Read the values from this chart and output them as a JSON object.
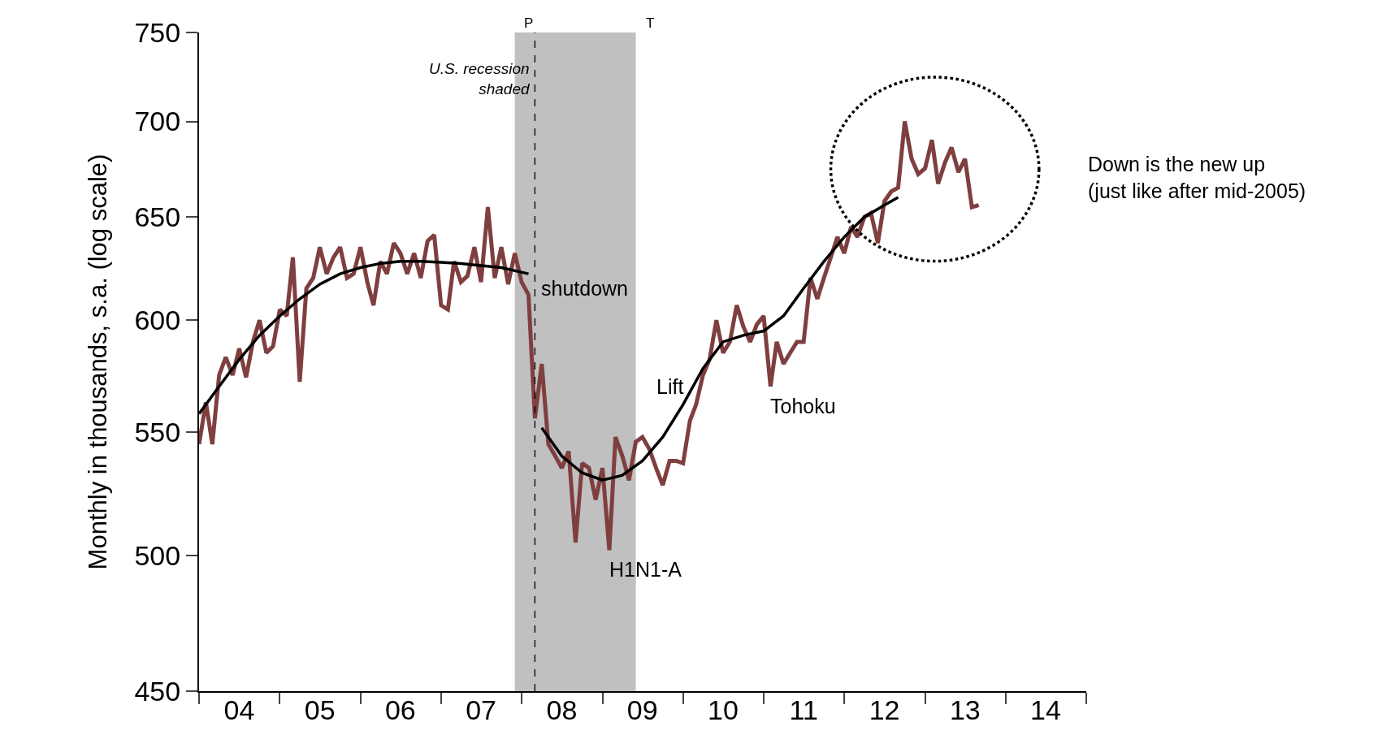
{
  "chart_data": {
    "type": "line",
    "ylabel": "Monthly in thousands, s.a. (log scale)",
    "log": "y",
    "xlim": [
      "2004-01-01",
      "2015-01-01"
    ],
    "xticks": [
      {
        "value": "2004-01-01",
        "label": null
      },
      {
        "value": "2004-07-01",
        "label": "04"
      },
      {
        "value": "2005-01-01",
        "label": null
      },
      {
        "value": "2005-07-01",
        "label": "05"
      },
      {
        "value": "2006-01-01",
        "label": null
      },
      {
        "value": "2006-07-01",
        "label": "06"
      },
      {
        "value": "2007-01-01",
        "label": null
      },
      {
        "value": "2007-07-01",
        "label": "07"
      },
      {
        "value": "2008-01-01",
        "label": null
      },
      {
        "value": "2008-07-01",
        "label": "08"
      },
      {
        "value": "2009-01-01",
        "label": null
      },
      {
        "value": "2009-07-01",
        "label": "09"
      },
      {
        "value": "2010-01-01",
        "label": null
      },
      {
        "value": "2010-07-01",
        "label": "10"
      },
      {
        "value": "2011-01-01",
        "label": null
      },
      {
        "value": "2011-07-01",
        "label": "11"
      },
      {
        "value": "2012-01-01",
        "label": null
      },
      {
        "value": "2012-07-01",
        "label": "12"
      },
      {
        "value": "2013-01-01",
        "label": null
      },
      {
        "value": "2013-07-01",
        "label": "13"
      },
      {
        "value": "2014-01-01",
        "label": null
      },
      {
        "value": "2014-07-01",
        "label": "14"
      },
      {
        "value": "2015-01-01",
        "label": null
      }
    ],
    "ylim": [
      450,
      750
    ],
    "yticks": [
      450,
      500,
      550,
      600,
      650,
      700,
      750
    ],
    "grid": false,
    "marker": "none",
    "line_style": "solid",
    "series": [
      {
        "color": "#7f3f3f",
        "x": [
          "2004-01",
          "2004-02",
          "2004-03",
          "2004-04",
          "2004-05",
          "2004-06",
          "2004-07",
          "2004-08",
          "2004-09",
          "2004-10",
          "2004-11",
          "2004-12",
          "2005-01",
          "2005-02",
          "2005-03",
          "2005-04",
          "2005-05",
          "2005-06",
          "2005-07",
          "2005-08",
          "2005-09",
          "2005-10",
          "2005-11",
          "2005-12",
          "2006-01",
          "2006-02",
          "2006-03",
          "2006-04",
          "2006-05",
          "2006-06",
          "2006-07",
          "2006-08",
          "2006-09",
          "2006-10",
          "2006-11",
          "2006-12",
          "2007-01",
          "2007-02",
          "2007-03",
          "2007-04",
          "2007-05",
          "2007-06",
          "2007-07",
          "2007-08",
          "2007-09",
          "2007-10",
          "2007-11",
          "2007-12",
          "2008-01",
          "2008-02",
          "2008-03",
          "2008-04",
          "2008-05",
          "2008-06",
          "2008-07",
          "2008-08",
          "2008-09",
          "2008-10",
          "2008-11",
          "2008-12",
          "2009-01",
          "2009-02",
          "2009-03",
          "2009-04",
          "2009-05",
          "2009-06",
          "2009-07",
          "2009-08",
          "2009-09",
          "2009-10",
          "2009-11",
          "2009-12",
          "2010-01",
          "2010-02",
          "2010-03",
          "2010-04",
          "2010-05",
          "2010-06",
          "2010-07",
          "2010-08",
          "2010-09",
          "2010-10",
          "2010-11",
          "2010-12",
          "2011-01",
          "2011-02",
          "2011-03",
          "2011-04",
          "2011-05",
          "2011-06",
          "2011-07",
          "2011-08",
          "2011-09",
          "2011-10",
          "2011-11",
          "2011-12",
          "2012-01",
          "2012-02",
          "2012-03",
          "2012-04",
          "2012-05",
          "2012-06",
          "2012-07",
          "2012-08",
          "2012-09",
          "2012-10",
          "2012-11",
          "2012-12",
          "2013-01",
          "2013-02",
          "2013-03",
          "2013-04",
          "2013-05",
          "2013-06",
          "2013-07",
          "2013-08",
          "2013-09"
        ],
        "values": [
          545,
          563,
          545,
          575,
          583,
          575,
          587,
          574,
          590,
          600,
          585,
          588,
          605,
          602,
          630,
          572,
          615,
          620,
          635,
          622,
          630,
          635,
          620,
          622,
          635,
          618,
          607,
          628,
          622,
          637,
          632,
          622,
          632,
          620,
          638,
          641,
          607,
          605,
          628,
          618,
          621,
          635,
          618,
          655,
          620,
          635,
          617,
          632,
          618,
          612,
          556,
          580,
          545,
          540,
          535,
          542,
          505,
          537,
          535,
          522,
          535,
          502,
          548,
          540,
          530,
          546,
          548,
          543,
          535,
          528,
          538,
          538,
          537,
          555,
          562,
          575,
          582,
          600,
          585,
          590,
          607,
          597,
          590,
          598,
          602,
          570,
          590,
          580,
          585,
          590,
          590,
          620,
          610,
          620,
          630,
          640,
          632,
          645,
          640,
          650,
          652,
          637,
          658,
          663,
          665,
          700,
          680,
          672,
          675,
          690,
          667,
          678,
          686,
          673,
          680,
          655,
          656
        ]
      },
      {
        "color": "#000000",
        "x": [
          "2004-01",
          "2004-04",
          "2004-07",
          "2004-10",
          "2005-01",
          "2005-04",
          "2005-07",
          "2005-10",
          "2006-01",
          "2006-04",
          "2006-07",
          "2006-10",
          "2007-01",
          "2007-04",
          "2007-07",
          "2007-10",
          "2008-02"
        ],
        "values": [
          558,
          570,
          582,
          593,
          602,
          610,
          617,
          622,
          625,
          627,
          628,
          628,
          627.5,
          627,
          626,
          625,
          622
        ]
      },
      {
        "color": "#000000",
        "x": [
          "2008-04",
          "2008-07",
          "2008-10",
          "2009-01",
          "2009-04",
          "2009-07",
          "2009-10",
          "2010-01",
          "2010-04",
          "2010-07",
          "2010-10",
          "2011-01",
          "2011-04",
          "2011-07",
          "2011-10",
          "2012-01",
          "2012-04",
          "2012-07",
          "2012-09"
        ],
        "values": [
          552,
          540,
          533,
          530,
          532,
          538,
          548,
          562,
          578,
          590,
          593,
          595,
          602,
          615,
          628,
          640,
          650,
          656,
          660
        ]
      }
    ],
    "bands": [
      {
        "axis": "x",
        "from": "2007-12-01",
        "to": "2009-06-01",
        "label": "U.S. recession shaded",
        "color": "#c0c0c0"
      }
    ],
    "ref_lines": [
      {
        "axis": "x",
        "value": "2008-03-01",
        "label": "P",
        "color": "#000000",
        "line_style": "dashed"
      }
    ],
    "annotations": [
      {
        "text": "T",
        "x": "2009-06-01",
        "y": 750
      },
      {
        "text": "shutdown",
        "x": "2008-02",
        "y": 622
      },
      {
        "text": "Lift",
        "x": "2010-03",
        "y": 562
      },
      {
        "text": "Tohoku",
        "x": "2011-02",
        "y": 570
      },
      {
        "text": "H1N1-A",
        "x": "2009-02",
        "y": 502
      },
      "Down is the new up\n(just like after mid-2005)"
    ]
  }
}
